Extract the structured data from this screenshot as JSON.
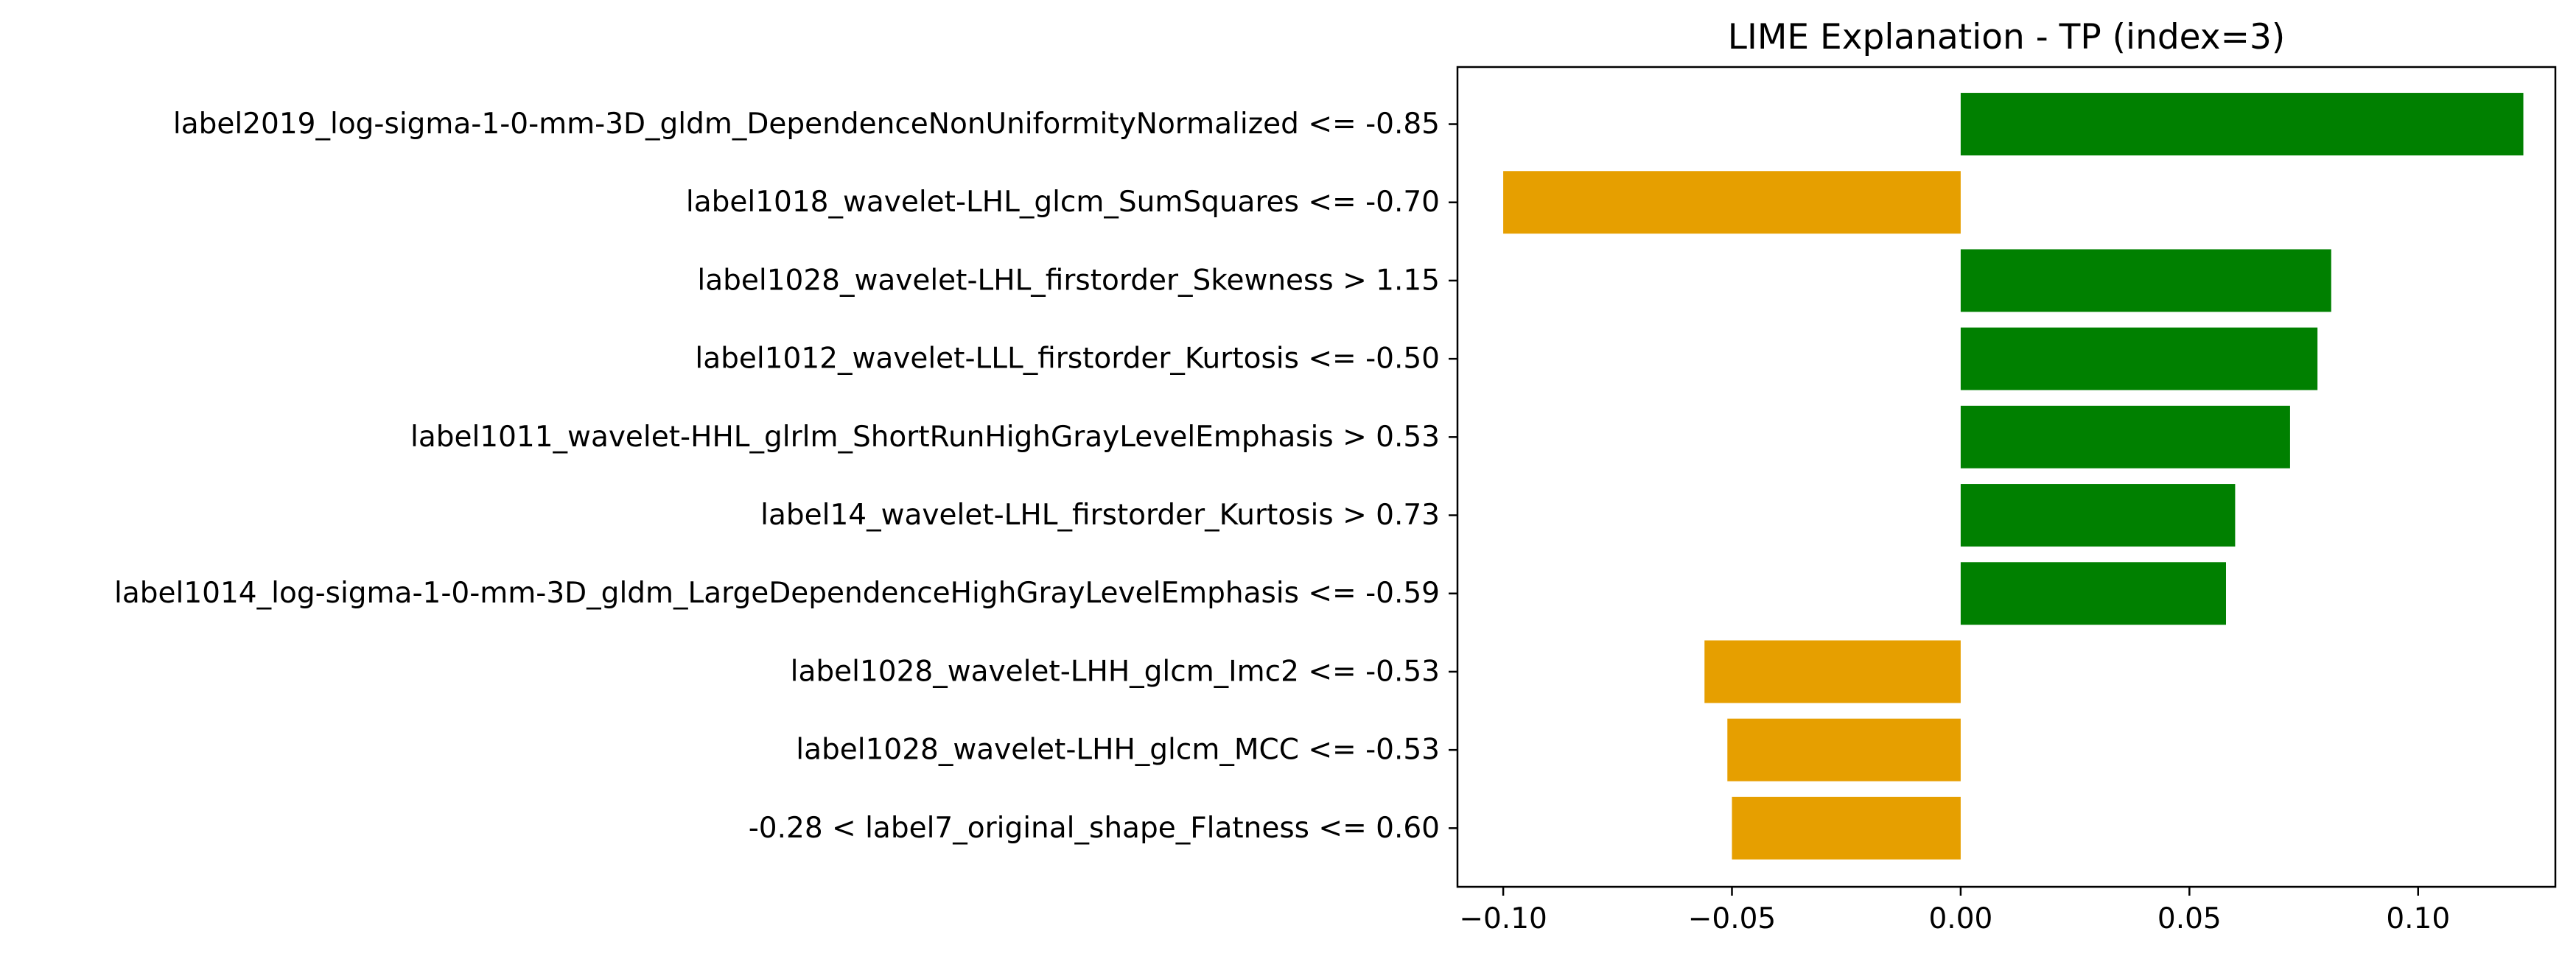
{
  "chart_data": {
    "type": "bar",
    "orientation": "horizontal",
    "title": "LIME Explanation - TP (index=3)",
    "xlabel": "",
    "ylabel": "",
    "xlim": [
      -0.11,
      0.13
    ],
    "xticks": [
      {
        "value": -0.1,
        "label": "−0.10"
      },
      {
        "value": -0.05,
        "label": "−0.05"
      },
      {
        "value": 0.0,
        "label": "0.00"
      },
      {
        "value": 0.05,
        "label": "0.05"
      },
      {
        "value": 0.1,
        "label": "0.10"
      }
    ],
    "grid": false,
    "positive_color": "#008000",
    "negative_color": "#e69f00",
    "categories": [
      "label2019_log-sigma-1-0-mm-3D_gldm_DependenceNonUniformityNormalized <= -0.85",
      "label1018_wavelet-LHL_glcm_SumSquares <= -0.70",
      "label1028_wavelet-LHL_firstorder_Skewness > 1.15",
      "label1012_wavelet-LLL_firstorder_Kurtosis <= -0.50",
      "label1011_wavelet-HHL_glrlm_ShortRunHighGrayLevelEmphasis > 0.53",
      "label14_wavelet-LHL_firstorder_Kurtosis > 0.73",
      "label1014_log-sigma-1-0-mm-3D_gldm_LargeDependenceHighGrayLevelEmphasis <= -0.59",
      "label1028_wavelet-LHH_glcm_Imc2 <= -0.53",
      "label1028_wavelet-LHH_glcm_MCC <= -0.53",
      "-0.28 < label7_original_shape_Flatness <= 0.60"
    ],
    "values": [
      0.123,
      -0.1,
      0.081,
      0.078,
      0.072,
      0.06,
      0.058,
      -0.056,
      -0.051,
      -0.05
    ]
  }
}
